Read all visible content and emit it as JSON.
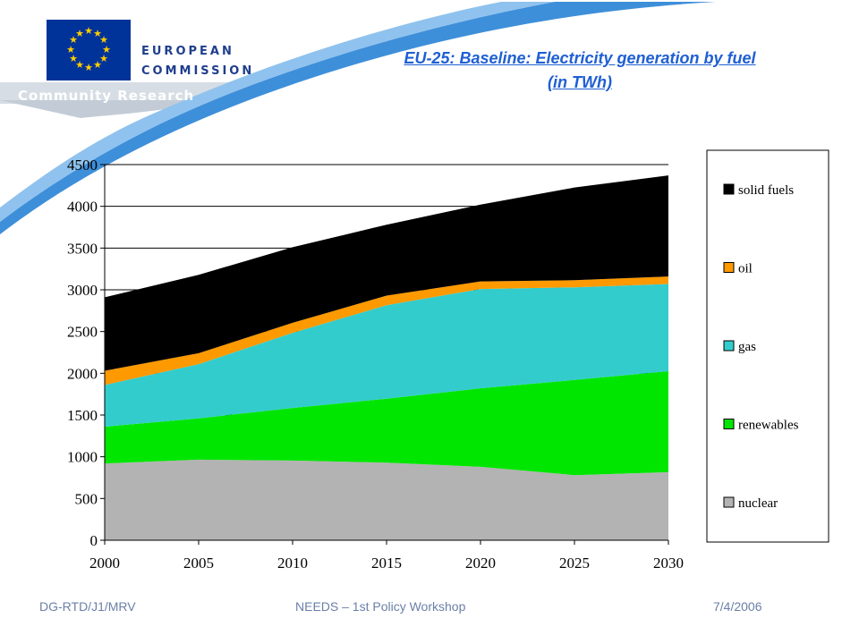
{
  "header": {
    "logo_line1": "EUROPEAN",
    "logo_line2": "COMMISSION",
    "community": "Community Research"
  },
  "title_line1": "EU-25: Baseline: Electricity generation by fuel",
  "title_line2": "(in TWh)",
  "footer": {
    "left": "DG-RTD/J1/MRV",
    "center": "NEEDS – 1st Policy Workshop",
    "right": "7/4/2006"
  },
  "colors": {
    "nuclear": "#b3b3b3",
    "renewables": "#00e600",
    "gas": "#33cccc",
    "oil": "#ff9900",
    "solid_fuels": "#000000",
    "brand_blue": "#003399",
    "title_blue": "#1f5fd3"
  },
  "chart_data": {
    "type": "area",
    "stacked": true,
    "x": [
      2000,
      2005,
      2010,
      2015,
      2020,
      2025,
      2030
    ],
    "ylim": [
      0,
      4500
    ],
    "yticks": [
      0,
      500,
      1000,
      1500,
      2000,
      2500,
      3000,
      3500,
      4000,
      4500
    ],
    "grid": "horizontal",
    "legend_position": "right",
    "series": [
      {
        "name": "nuclear",
        "color": "#b3b3b3",
        "values": [
          920,
          965,
          955,
          930,
          880,
          780,
          815
        ]
      },
      {
        "name": "renewables",
        "color": "#00e600",
        "values": [
          440,
          495,
          630,
          765,
          940,
          1140,
          1210
        ]
      },
      {
        "name": "gas",
        "color": "#33cccc",
        "values": [
          500,
          650,
          900,
          1120,
          1190,
          1110,
          1045
        ]
      },
      {
        "name": "oil",
        "color": "#ff9900",
        "values": [
          170,
          130,
          120,
          115,
          90,
          85,
          90
        ]
      },
      {
        "name": "solid fuels",
        "color": "#000000",
        "values": [
          880,
          940,
          905,
          850,
          920,
          1110,
          1210
        ]
      }
    ]
  }
}
